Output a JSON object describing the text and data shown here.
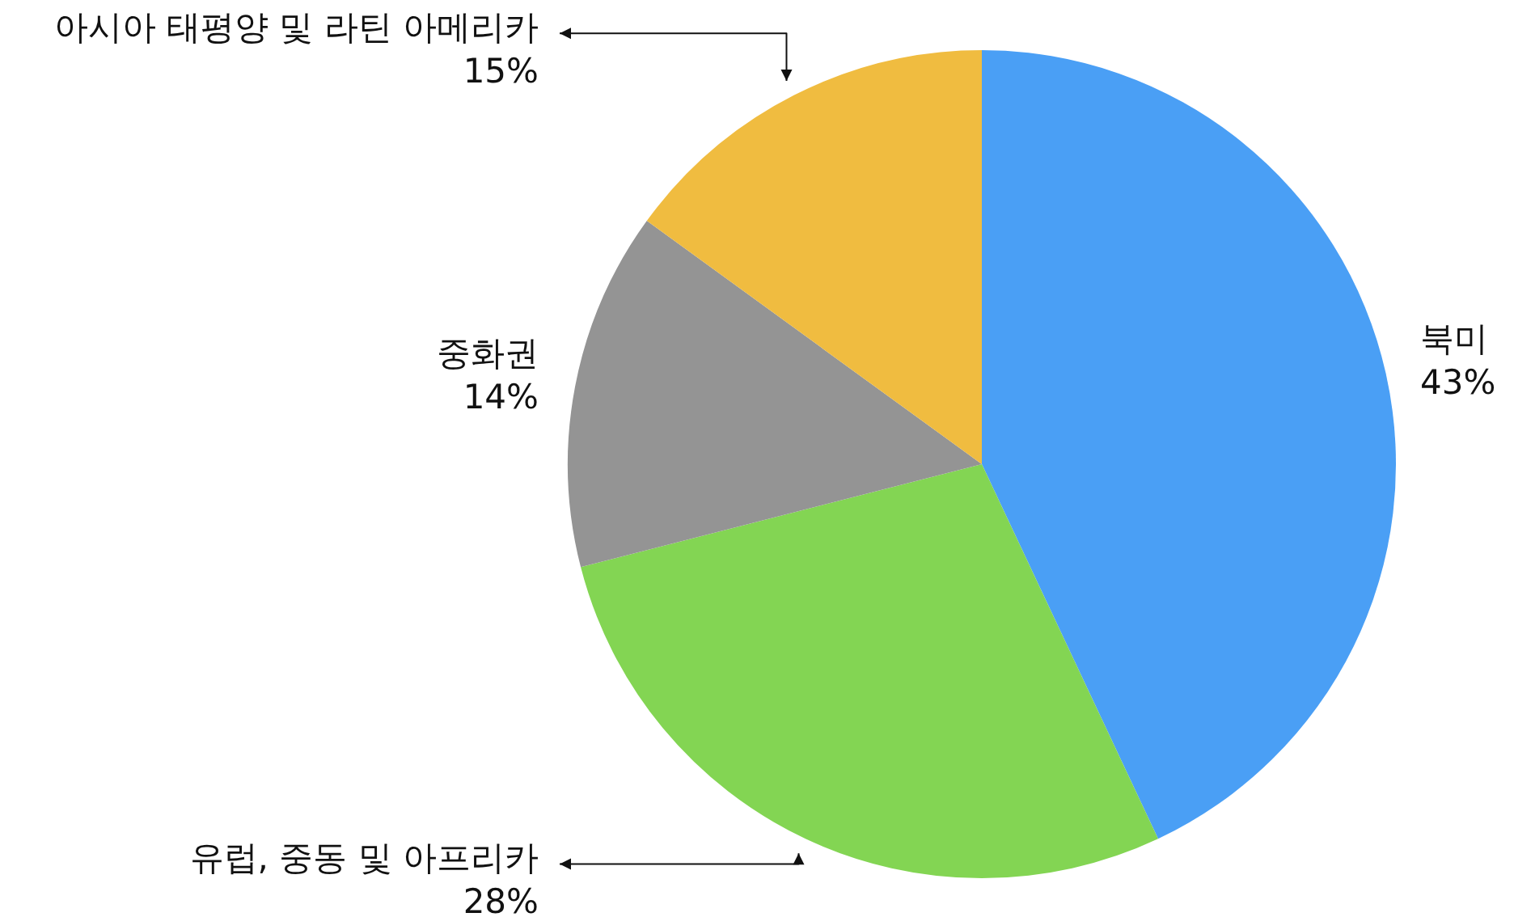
{
  "chart_data": {
    "type": "pie",
    "categories": [
      "북미",
      "유럽, 중동 및 아프리카",
      "중화권",
      "아시아 태평양 및 라틴 아메리카"
    ],
    "values": [
      43,
      28,
      14,
      15
    ],
    "value_labels": [
      "43%",
      "28%",
      "14%",
      "15%"
    ],
    "colors": [
      "#4a9ff5",
      "#83d553",
      "#949494",
      "#f0bc40"
    ],
    "legend": false
  }
}
